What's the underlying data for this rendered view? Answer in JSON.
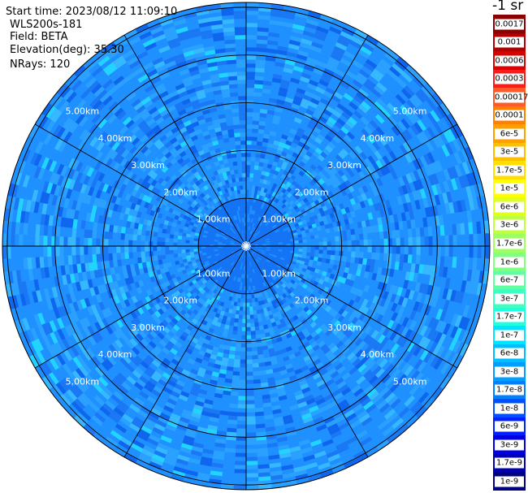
{
  "header": {
    "start_time": "Start time: 2023/08/12 11:09:10",
    "instrument": "WLS200s-181",
    "field": "Field: BETA",
    "elevation": "Elevation(deg): 35.30",
    "nrays": "NRays: 120"
  },
  "range_rings": {
    "labels": [
      "1.00km",
      "2.00km",
      "3.00km",
      "4.00km",
      "5.00km"
    ],
    "count": 6
  },
  "colorbar": {
    "title": "-1 sr",
    "entries": [
      {
        "label": "0.0017",
        "color": "#8b0000"
      },
      {
        "label": "0.001",
        "color": "#b30000"
      },
      {
        "label": "0.0006",
        "color": "#d90000"
      },
      {
        "label": "0.0003",
        "color": "#ff1a1a"
      },
      {
        "label": "0.00017",
        "color": "#ff5a2a"
      },
      {
        "label": "0.0001",
        "color": "#ff8000"
      },
      {
        "label": "6e-5",
        "color": "#ff9f00"
      },
      {
        "label": "3e-5",
        "color": "#ffbf00"
      },
      {
        "label": "1.7e-5",
        "color": "#ffdf00"
      },
      {
        "label": "1e-5",
        "color": "#ffff00"
      },
      {
        "label": "6e-6",
        "color": "#dfff1f"
      },
      {
        "label": "3e-6",
        "color": "#bfff3f"
      },
      {
        "label": "1.7e-6",
        "color": "#9fff60"
      },
      {
        "label": "1e-6",
        "color": "#80ff80"
      },
      {
        "label": "6e-7",
        "color": "#5fffa0"
      },
      {
        "label": "3e-7",
        "color": "#3fffc0"
      },
      {
        "label": "1.7e-7",
        "color": "#1fffe0"
      },
      {
        "label": "1e-7",
        "color": "#00e5ff"
      },
      {
        "label": "6e-8",
        "color": "#00bfff"
      },
      {
        "label": "3e-8",
        "color": "#009fff"
      },
      {
        "label": "1.7e-8",
        "color": "#0080ff"
      },
      {
        "label": "1e-8",
        "color": "#0050ff"
      },
      {
        "label": "6e-9",
        "color": "#0020ff"
      },
      {
        "label": "3e-9",
        "color": "#0000e0"
      },
      {
        "label": "1.7e-9",
        "color": "#0000b0"
      },
      {
        "label": "1e-9",
        "color": "#000080"
      }
    ]
  }
}
